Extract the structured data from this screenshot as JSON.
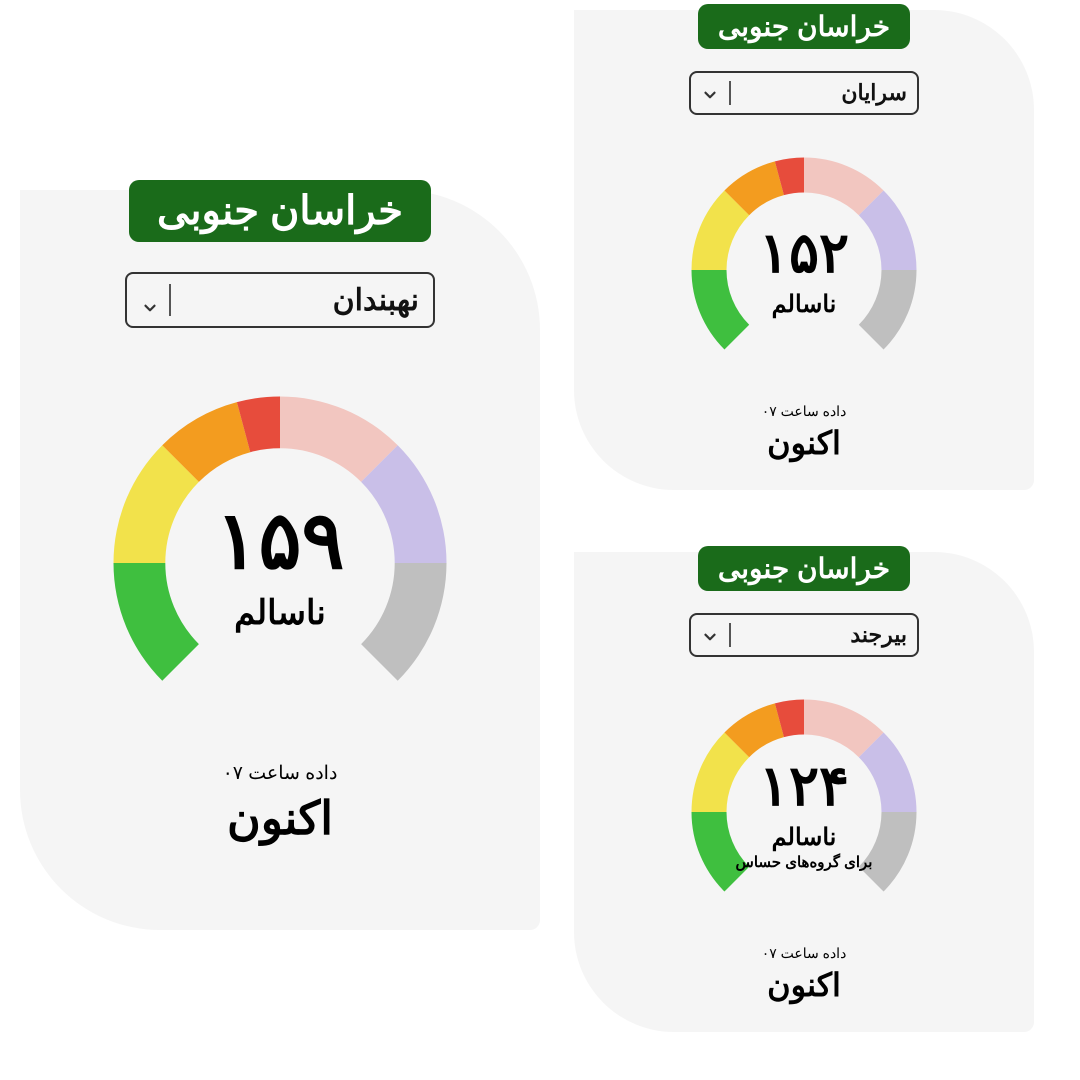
{
  "palette": {
    "province_bg": "#1a6b1a",
    "card_bg": "#f5f5f5",
    "text": "#000000"
  },
  "gauge_style": {
    "start_angle_deg": 135,
    "sweep_deg": 270,
    "thickness_ratio": 0.14,
    "segments": [
      {
        "color": "#3fbf3f",
        "span": 45
      },
      {
        "color": "#f2e24b",
        "span": 45
      },
      {
        "color": "#f39c1f",
        "span": 30
      },
      {
        "color": "#e74c3c",
        "span": 15
      },
      {
        "color": "#f2c6c0",
        "span": 45
      },
      {
        "color": "#c9bfe8",
        "span": 45
      },
      {
        "color": "#bfbfbf",
        "span": 45
      }
    ],
    "max_aqi": 300
  },
  "cards": [
    {
      "id": "nehbandan",
      "size": "large",
      "province": "خراسان جنوبی",
      "city": "نهبندان",
      "aqi_value": "۱۵۹",
      "aqi_numeric": 159,
      "status": "ناسالم",
      "sub_status": "",
      "timestamp": "داده ساعت ۰۷",
      "now_label": "اکنون"
    },
    {
      "id": "sarayan",
      "size": "small",
      "province": "خراسان جنوبی",
      "city": "سرایان",
      "aqi_value": "۱۵۲",
      "aqi_numeric": 152,
      "status": "ناسالم",
      "sub_status": "",
      "timestamp": "داده ساعت ۰۷",
      "now_label": "اکنون"
    },
    {
      "id": "birjand",
      "size": "small",
      "province": "خراسان جنوبی",
      "city": "بیرجند",
      "aqi_value": "۱۲۴",
      "aqi_numeric": 124,
      "status": "ناسالم",
      "sub_status": "برای گروه‌های حساس",
      "timestamp": "داده ساعت ۰۷",
      "now_label": "اکنون"
    }
  ]
}
